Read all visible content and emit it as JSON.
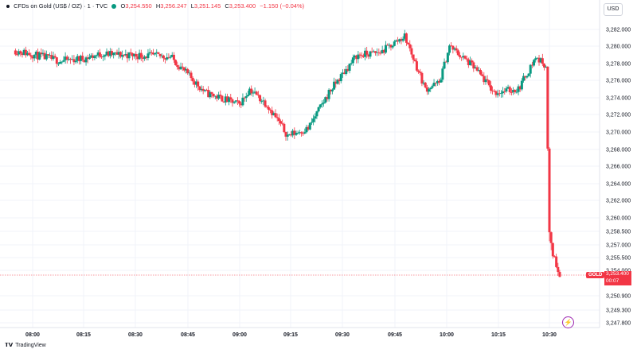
{
  "header": {
    "title": "CFDs on Gold (US$ / OZ) · 1 · TVC",
    "o_label": "O",
    "o_value": "3,254.550",
    "h_label": "H",
    "h_value": "3,256.247",
    "l_label": "L",
    "l_value": "3,251.145",
    "c_label": "C",
    "c_value": "3,253.400",
    "change": "−1.150 (−0.04%)"
  },
  "currency": "USD",
  "symbol_tag": "GOLD",
  "price_label": {
    "price": "3,253.400",
    "countdown": "00:07"
  },
  "logo_text": "TradingView",
  "colors": {
    "up": "#089981",
    "down": "#f23645",
    "grid": "#f0f3fa",
    "accent": "#9c27b0"
  },
  "icons": {
    "logo": "tradingview-logo-icon",
    "flash": "lightning-icon"
  },
  "chart_data": {
    "type": "candlestick",
    "x_ticks": [
      "08:00",
      "08:15",
      "08:30",
      "08:45",
      "09:00",
      "09:15",
      "09:30",
      "09:45",
      "10:00",
      "10:15",
      "10:30"
    ],
    "y_ticks": [
      "3,282.000",
      "3,280.000",
      "3,278.000",
      "3,276.000",
      "3,274.000",
      "3,272.000",
      "3,270.000",
      "3,268.000",
      "3,266.000",
      "3,264.000",
      "3,262.000",
      "3,260.000",
      "3,258.500",
      "3,257.000",
      "3,255.500",
      "3,254.000",
      "3,250.900",
      "3,249.300",
      "3,247.800"
    ],
    "last_price": 3253.4,
    "key_points": [
      {
        "t": "07:55",
        "price": 3279.5
      },
      {
        "t": "08:08",
        "price": 3278.3
      },
      {
        "t": "08:15",
        "price": 3278.6
      },
      {
        "t": "08:20",
        "price": 3279.1
      },
      {
        "t": "08:40",
        "price": 3278.8
      },
      {
        "t": "08:50",
        "price": 3274.6
      },
      {
        "t": "09:00",
        "price": 3273.2
      },
      {
        "t": "09:03",
        "price": 3275.0
      },
      {
        "t": "09:08",
        "price": 3273.2
      },
      {
        "t": "09:14",
        "price": 3269.6
      },
      {
        "t": "09:20",
        "price": 3270.4
      },
      {
        "t": "09:26",
        "price": 3274.6
      },
      {
        "t": "09:34",
        "price": 3278.9
      },
      {
        "t": "09:41",
        "price": 3279.3
      },
      {
        "t": "09:48",
        "price": 3281.2
      },
      {
        "t": "09:54",
        "price": 3275.0
      },
      {
        "t": "09:58",
        "price": 3275.7
      },
      {
        "t": "10:01",
        "price": 3280.0
      },
      {
        "t": "10:08",
        "price": 3277.6
      },
      {
        "t": "10:14",
        "price": 3274.6
      },
      {
        "t": "10:21",
        "price": 3275.0
      },
      {
        "t": "10:26",
        "price": 3278.7
      },
      {
        "t": "10:29",
        "price": 3277.8
      },
      {
        "t": "10:30",
        "price": 3258.4
      },
      {
        "t": "10:31",
        "price": 3256.0
      },
      {
        "t": "10:33",
        "price": 3253.4
      }
    ]
  }
}
